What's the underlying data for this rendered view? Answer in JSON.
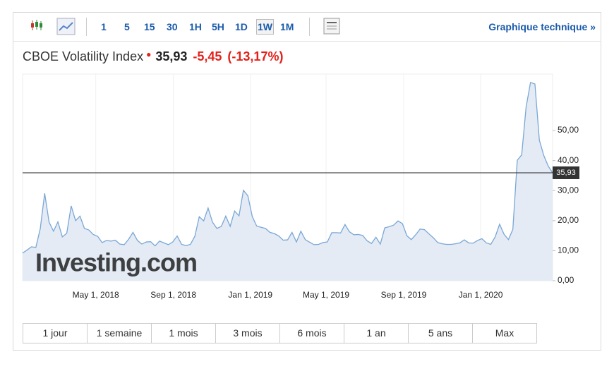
{
  "toolbar": {
    "intervals": [
      "1",
      "5",
      "15",
      "30",
      "1H",
      "5H",
      "1D",
      "1W",
      "1M"
    ],
    "selected_interval": "1W",
    "link": "Graphique technique »"
  },
  "quote": {
    "price": "35,93",
    "change": "-5,45",
    "change_pct": "(-13,17%)"
  },
  "range_buttons": [
    "1 jour",
    "1 semaine",
    "1 mois",
    "3 mois",
    "6 mois",
    "1 an",
    "5 ans",
    "Max"
  ],
  "chart_data": {
    "type": "line",
    "title": "CBOE Volatility Index",
    "watermark": "Investing.com",
    "line_color": "#7aa7d6",
    "fill_color": "#e4ebf5",
    "xgrid": true,
    "grid": false,
    "current_line": true,
    "x": [
      "2018-01-05",
      "2018-01-12",
      "2018-01-19",
      "2018-01-26",
      "2018-02-02",
      "2018-02-09",
      "2018-02-16",
      "2018-02-23",
      "2018-03-02",
      "2018-03-09",
      "2018-03-16",
      "2018-03-23",
      "2018-03-30",
      "2018-04-06",
      "2018-04-13",
      "2018-04-20",
      "2018-04-27",
      "2018-05-04",
      "2018-05-11",
      "2018-05-18",
      "2018-05-25",
      "2018-06-01",
      "2018-06-08",
      "2018-06-15",
      "2018-06-22",
      "2018-06-29",
      "2018-07-06",
      "2018-07-13",
      "2018-07-20",
      "2018-07-27",
      "2018-08-03",
      "2018-08-10",
      "2018-08-17",
      "2018-08-24",
      "2018-08-31",
      "2018-09-07",
      "2018-09-14",
      "2018-09-21",
      "2018-09-28",
      "2018-10-05",
      "2018-10-12",
      "2018-10-19",
      "2018-10-26",
      "2018-11-02",
      "2018-11-09",
      "2018-11-16",
      "2018-11-23",
      "2018-11-30",
      "2018-12-07",
      "2018-12-14",
      "2018-12-21",
      "2018-12-28",
      "2019-01-04",
      "2019-01-11",
      "2019-01-18",
      "2019-01-25",
      "2019-02-01",
      "2019-02-08",
      "2019-02-15",
      "2019-02-22",
      "2019-03-01",
      "2019-03-08",
      "2019-03-15",
      "2019-03-22",
      "2019-03-29",
      "2019-04-05",
      "2019-04-12",
      "2019-04-19",
      "2019-04-26",
      "2019-05-03",
      "2019-05-10",
      "2019-05-17",
      "2019-05-24",
      "2019-05-31",
      "2019-06-07",
      "2019-06-14",
      "2019-06-21",
      "2019-06-28",
      "2019-07-05",
      "2019-07-12",
      "2019-07-19",
      "2019-07-26",
      "2019-08-02",
      "2019-08-09",
      "2019-08-16",
      "2019-08-23",
      "2019-08-30",
      "2019-09-06",
      "2019-09-13",
      "2019-09-20",
      "2019-09-27",
      "2019-10-04",
      "2019-10-11",
      "2019-10-18",
      "2019-10-25",
      "2019-11-01",
      "2019-11-08",
      "2019-11-15",
      "2019-11-22",
      "2019-11-29",
      "2019-12-06",
      "2019-12-13",
      "2019-12-20",
      "2019-12-27",
      "2020-01-03",
      "2020-01-10",
      "2020-01-17",
      "2020-01-24",
      "2020-01-31",
      "2020-02-07",
      "2020-02-14",
      "2020-02-21",
      "2020-02-28",
      "2020-03-06",
      "2020-03-13",
      "2020-03-20",
      "2020-03-27",
      "2020-04-03",
      "2020-04-10",
      "2020-04-17",
      "2020-04-24"
    ],
    "values": [
      9.2,
      10.2,
      11.3,
      11.1,
      17.3,
      29.1,
      19.5,
      16.5,
      19.6,
      14.6,
      15.8,
      24.9,
      20,
      21.5,
      17.4,
      16.9,
      15.4,
      14.8,
      12.7,
      13.4,
      13.2,
      13.5,
      12.2,
      12,
      13.8,
      16.1,
      13.4,
      12.2,
      12.9,
      13,
      11.6,
      13.2,
      12.6,
      12,
      12.9,
      14.9,
      12.1,
      11.7,
      12.1,
      14.8,
      21.3,
      19.9,
      24.2,
      19.5,
      17.4,
      18.1,
      21.5,
      18.1,
      23.2,
      21.6,
      30.1,
      28.3,
      21.4,
      18.2,
      17.8,
      17.4,
      16.1,
      15.7,
      14.9,
      13.5,
      13.6,
      16.1,
      12.9,
      16.5,
      13.7,
      12.8,
      12,
      12.1,
      12.7,
      12.9,
      16,
      16,
      15.9,
      18.7,
      16.3,
      15.3,
      15.4,
      15.1,
      13.3,
      12.4,
      14.5,
      12.2,
      17.6,
      18,
      18.5,
      19.9,
      19,
      15,
      13.7,
      15.3,
      17.2,
      17,
      15.6,
      14.3,
      12.7,
      12.3,
      12.1,
      12.1,
      12.3,
      12.6,
      13.6,
      12.6,
      12.5,
      13.4,
      14,
      12.6,
      12.1,
      14.6,
      18.8,
      15.5,
      13.7,
      17.1,
      40.1,
      41.9,
      57.8,
      66,
      65.5,
      46.8,
      41.7,
      38.2,
      35.93
    ],
    "xlim": [
      "2018-01-05",
      "2020-04-24"
    ],
    "xticks": [
      {
        "value": "2018-05-01",
        "label": "May 1, 2018"
      },
      {
        "value": "2018-09-01",
        "label": "Sep 1, 2018"
      },
      {
        "value": "2019-01-01",
        "label": "Jan 1, 2019"
      },
      {
        "value": "2019-05-01",
        "label": "May 1, 2019"
      },
      {
        "value": "2019-09-01",
        "label": "Sep 1, 2019"
      },
      {
        "value": "2020-01-01",
        "label": "Jan 1, 2020"
      }
    ],
    "ylim": [
      0,
      68.8
    ],
    "yticks": [
      {
        "value": 0,
        "label": "0,00"
      },
      {
        "value": 10,
        "label": "10,00"
      },
      {
        "value": 20,
        "label": "20,00"
      },
      {
        "value": 30,
        "label": "30,00"
      },
      {
        "value": 40,
        "label": "40,00"
      },
      {
        "value": 50,
        "label": "50,00"
      }
    ]
  }
}
